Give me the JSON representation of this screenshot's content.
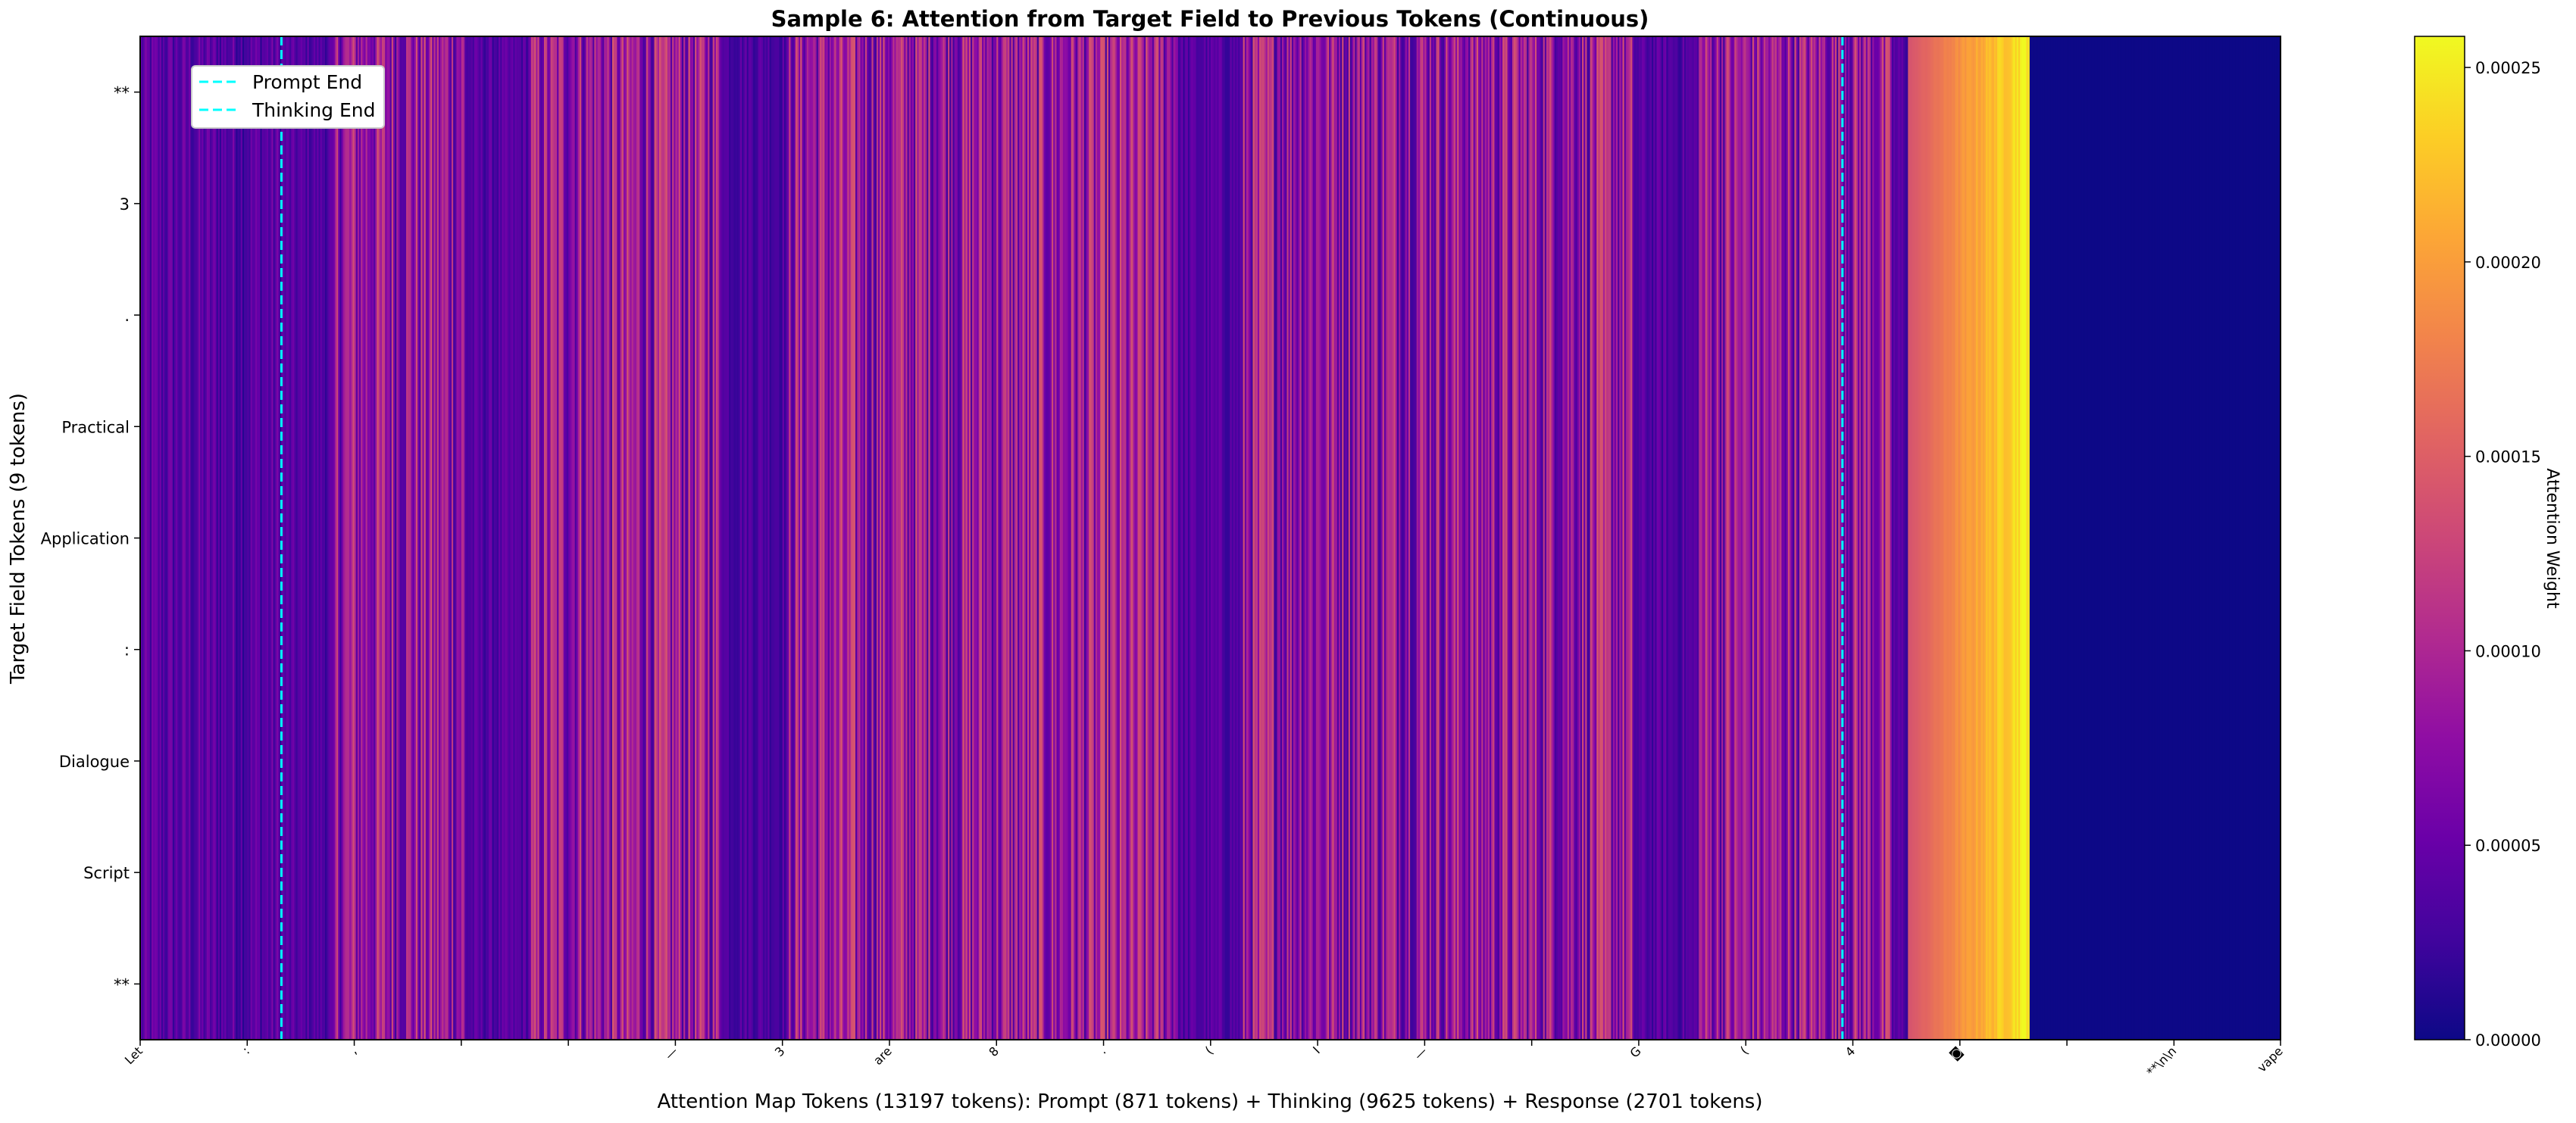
{
  "chart_data": {
    "type": "heatmap",
    "title": "Sample 6: Attention from Target Field to Previous Tokens (Continuous)",
    "xlabel": "Attention Map Tokens (13197 tokens): Prompt (871 tokens) + Thinking (9625 tokens) + Response (2701 tokens)",
    "ylabel": "Target Field Tokens (9 tokens)",
    "colorbar_label": "Attention Weight",
    "colormap": "plasma",
    "vmin": 0,
    "vmax": 0.000258,
    "colorbar_ticks": [
      {
        "value": 0.0,
        "label": "0.00000"
      },
      {
        "value": 5e-05,
        "label": "0.00005"
      },
      {
        "value": 0.0001,
        "label": "0.00010"
      },
      {
        "value": 0.00015,
        "label": "0.00015"
      },
      {
        "value": 0.0002,
        "label": "0.00020"
      },
      {
        "value": 0.00025,
        "label": "0.00025"
      }
    ],
    "y_tokens": [
      "**",
      "3",
      ".",
      "Practical",
      "Application",
      ":",
      "Dialogue",
      "Script",
      "**"
    ],
    "x_range": [
      0,
      13197
    ],
    "x_tick_labels": [
      {
        "pos": 0,
        "label": "Let"
      },
      {
        "pos": 660,
        "label": ":"
      },
      {
        "pos": 1320,
        "label": ","
      },
      {
        "pos": 1980,
        "label": ""
      },
      {
        "pos": 2640,
        "label": ""
      },
      {
        "pos": 3300,
        "label": "—"
      },
      {
        "pos": 3960,
        "label": "3"
      },
      {
        "pos": 4620,
        "label": "are"
      },
      {
        "pos": 5280,
        "label": "8"
      },
      {
        "pos": 5940,
        "label": "."
      },
      {
        "pos": 6600,
        "label": "("
      },
      {
        "pos": 7260,
        "label": "I"
      },
      {
        "pos": 7920,
        "label": "—"
      },
      {
        "pos": 8580,
        "label": ""
      },
      {
        "pos": 9240,
        "label": "G"
      },
      {
        "pos": 9900,
        "label": "("
      },
      {
        "pos": 10560,
        "label": "4"
      },
      {
        "pos": 11220,
        "label": "◙"
      },
      {
        "pos": 11880,
        "label": ""
      },
      {
        "pos": 12540,
        "label": "**\\n\\n"
      },
      {
        "pos": 13197,
        "label": "vape"
      }
    ],
    "markers": [
      {
        "name": "Prompt End",
        "x": 871,
        "color": "#00ffff"
      },
      {
        "name": "Thinking End",
        "x": 10496,
        "color": "#00ffff"
      }
    ],
    "legend_position": "top-left",
    "regions": {
      "prompt": {
        "start": 0,
        "end": 871,
        "mean_weight": 4e-05
      },
      "thinking": {
        "start": 871,
        "end": 10496,
        "mean_weight": 8e-05
      },
      "late_thinking_ramp": {
        "start": 10900,
        "end": 11650,
        "start_weight": 0.00014,
        "end_weight": 0.000258
      },
      "response": {
        "start": 11650,
        "end": 13197,
        "weight": 0.0
      }
    },
    "grid": false
  }
}
